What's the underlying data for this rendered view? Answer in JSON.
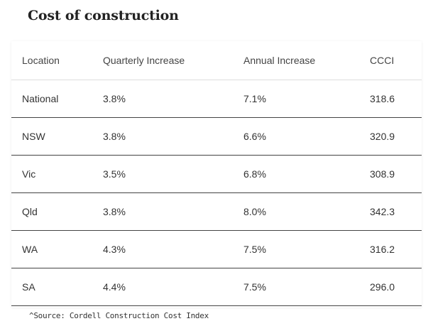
{
  "title": "Cost of construction",
  "source": "^Source: Cordell Construction Cost Index",
  "chart_data": {
    "type": "table",
    "columns": [
      "Location",
      "Quarterly Increase",
      "Annual Increase",
      "CCCI"
    ],
    "rows": [
      [
        "National",
        "3.8%",
        "7.1%",
        "318.6"
      ],
      [
        "NSW",
        "3.8%",
        "6.6%",
        "320.9"
      ],
      [
        "Vic",
        "3.5%",
        "6.8%",
        "308.9"
      ],
      [
        "Qld",
        "3.8%",
        "8.0%",
        "342.3"
      ],
      [
        "WA",
        "4.3%",
        "7.5%",
        "316.2"
      ],
      [
        "SA",
        "4.4%",
        "7.5%",
        "296.0"
      ]
    ]
  }
}
